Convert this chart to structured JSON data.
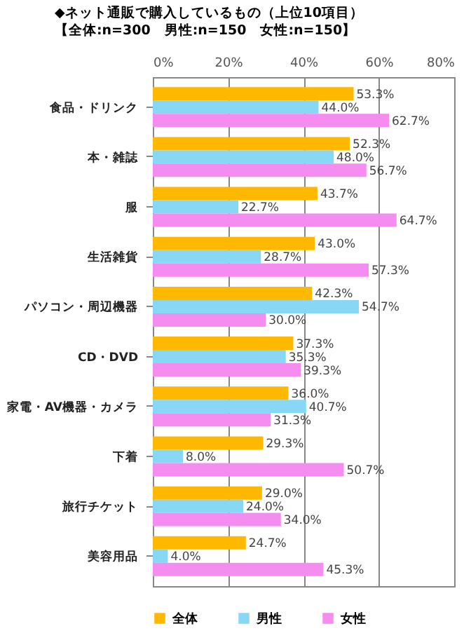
{
  "chart_data": {
    "type": "bar",
    "orientation": "horizontal",
    "title": "◆ネット通販で購入しているもの（上位10項目）",
    "subtitle": "【全体:n=300　男性:n=150　女性:n=150】",
    "categories": [
      "食品・ドリンク",
      "本・雑誌",
      "服",
      "生活雑貨",
      "パソコン・周辺機器",
      "CD・DVD",
      "家電・AV機器・カメラ",
      "下着",
      "旅行チケット",
      "美容用品"
    ],
    "series": [
      {
        "name": "全体",
        "color": "#ffb800",
        "values": [
          53.3,
          52.3,
          43.7,
          43.0,
          42.3,
          37.3,
          36.0,
          29.3,
          29.0,
          24.7
        ],
        "value_labels": [
          "53.3%",
          "52.3%",
          "43.7%",
          "43.0%",
          "42.3%",
          "37.3%",
          "36.0%",
          "29.3%",
          "29.0%",
          "24.7%"
        ]
      },
      {
        "name": "男性",
        "color": "#87d7f5",
        "values": [
          44.0,
          48.0,
          22.7,
          28.7,
          54.7,
          35.3,
          40.7,
          8.0,
          24.0,
          4.0
        ],
        "value_labels": [
          "44.0%",
          "48.0%",
          "22.7%",
          "28.7%",
          "54.7%",
          "35.3%",
          "40.7%",
          "8.0%",
          "24.0%",
          "4.0%"
        ]
      },
      {
        "name": "女性",
        "color": "#f58cf0",
        "values": [
          62.7,
          56.7,
          64.7,
          57.3,
          30.0,
          39.3,
          31.3,
          50.7,
          34.0,
          45.3
        ],
        "value_labels": [
          "62.7%",
          "56.7%",
          "64.7%",
          "57.3%",
          "30.0%",
          "39.3%",
          "31.3%",
          "50.7%",
          "34.0%",
          "45.3%"
        ]
      }
    ],
    "xlim": [
      0,
      80
    ],
    "xticks": [
      {
        "value": 0,
        "label": "0%"
      },
      {
        "value": 20,
        "label": "20%"
      },
      {
        "value": 40,
        "label": "40%"
      },
      {
        "value": 60,
        "label": "60%"
      },
      {
        "value": 80,
        "label": "80%"
      }
    ],
    "grid": "x",
    "legend": "bottom"
  }
}
